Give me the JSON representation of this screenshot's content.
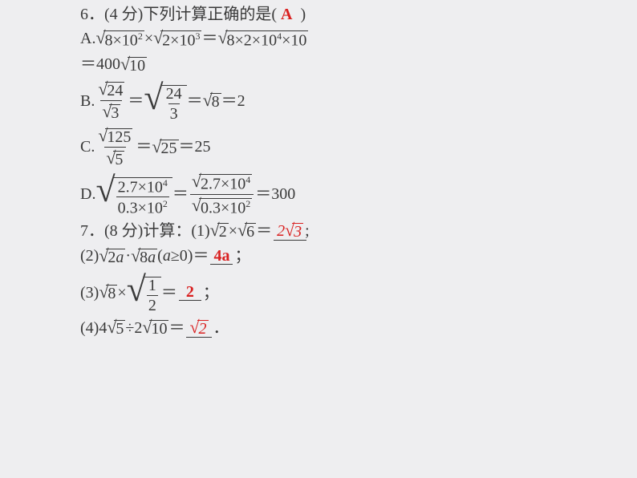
{
  "q6": {
    "prefix": "6．(4 分)下列计算正确的是(",
    "answer": "A",
    "suffix": ")"
  },
  "optA": {
    "label": "A.",
    "eq1_left_a": "8×10",
    "eq1_left_a_sup": "2",
    "eq1_mult": "×",
    "eq1_left_b": "2×10",
    "eq1_left_b_sup": "3",
    "eq1_eq": "＝",
    "eq1_right": "8×2×10",
    "eq1_right_sup": "4",
    "eq1_right_tail": "×10",
    "line2_eq": "＝400",
    "line2_sqrt": "10"
  },
  "optB": {
    "label": "B.",
    "num_sqrt": "24",
    "den_sqrt": "3",
    "eq1": "＝",
    "frac2_num": "24",
    "frac2_den": "3",
    "eq2": "＝",
    "sqrt8": "8",
    "eq3": "＝2"
  },
  "optC": {
    "label": "C.",
    "num_sqrt": "125",
    "den_sqrt": "5",
    "eq1": "＝",
    "sqrt25": "25",
    "eq2": "＝25"
  },
  "optD": {
    "label": "D.",
    "frac1_num": "2.7×10",
    "frac1_num_sup": "4",
    "frac1_den": "0.3×10",
    "frac1_den_sup": "2",
    "eq1": "＝",
    "frac2_num": "2.7×10",
    "frac2_num_sup": "4",
    "frac2_den": "0.3×10",
    "frac2_den_sup": "2",
    "eq2": "＝300"
  },
  "q7": {
    "prefix": "7．(8 分)计算：(1)",
    "sqrt2": "2",
    "mult": "×",
    "sqrt6": "6",
    "eq": "＝",
    "ans_coef": "2",
    "ans_sqrt": "3",
    "semicolon": ";"
  },
  "q7_2": {
    "prefix": "(2)",
    "sqrt2a_1": "2",
    "sqrt2a_1_var": "a",
    "dot": "·",
    "sqrt8a_1": "8",
    "sqrt8a_1_var": "a",
    "cond_open": "(",
    "cond_var": "a",
    "cond_rest": "≥0)＝",
    "answer": "4a",
    "semicolon": "；"
  },
  "q7_3": {
    "prefix": "(3)",
    "sqrt8": "8",
    "mult": "×",
    "frac_num": "1",
    "frac_den": "2",
    "eq": "＝",
    "answer": "2",
    "semicolon": "；"
  },
  "q7_4": {
    "prefix": "(4)4",
    "sqrt5": "5",
    "div": "÷2",
    "sqrt10": "10",
    "eq": "＝",
    "ans_sqrt": "2",
    "period": "．"
  }
}
